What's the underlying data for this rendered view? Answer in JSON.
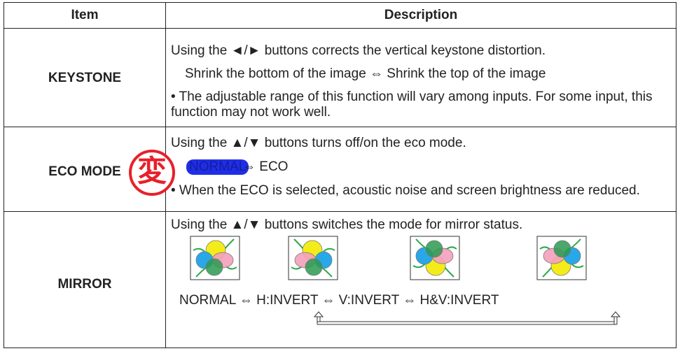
{
  "header": {
    "item": "Item",
    "description": "Description"
  },
  "rows": [
    {
      "item": "KEYSTONE",
      "lines": [
        "Using the ◄/► buttons corrects the vertical keystone distortion.",
        "Shrink the bottom of the image ⇔ Shrink the top of the image",
        "• The adjustable range of this function will vary among inputs. For some input, this function may not work well."
      ]
    },
    {
      "item": "ECO MODE",
      "badge": "変",
      "lines": [
        "Using the ▲/▼ buttons turns off/on the eco mode.",
        "• When the ECO is selected, acoustic noise and screen brightness are reduced."
      ],
      "options": [
        "NORMAL",
        "⇔ ECO"
      ]
    },
    {
      "item": "MIRROR",
      "lines": [
        "Using the ▲/▼ buttons switches the mode for mirror status.",
        "NORMAL ⇔ H:INVERT ⇔ V:INVERT ⇔ H&V:INVERT"
      ]
    }
  ]
}
